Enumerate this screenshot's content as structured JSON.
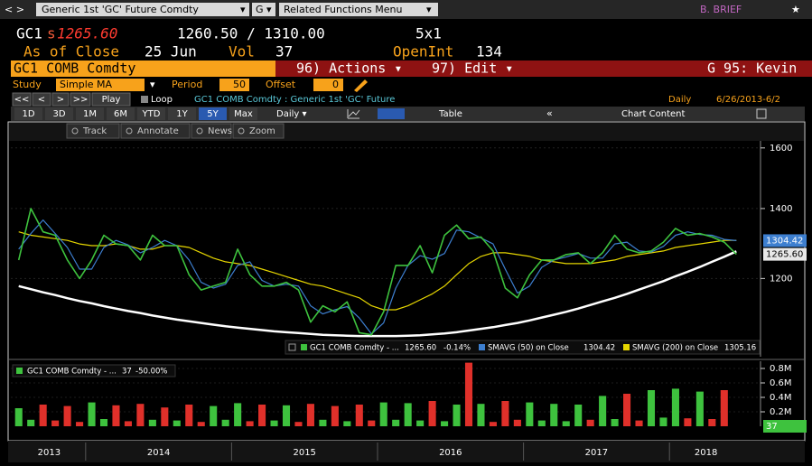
{
  "header": {
    "nav": "< >",
    "security": "Generic 1st 'GC' Future Comdty",
    "g": "G",
    "related": "Related Functions Menu",
    "arrow": "▾",
    "user": "B. BRIEF",
    "star": "★"
  },
  "quote": {
    "ticker": "GC1",
    "s": "s",
    "last": "1265.60",
    "bid_ask": "1260.50 / 1310.00",
    "size": "5x1",
    "as_of": "As of Close",
    "date": "25 Jun",
    "vol_label": "Vol",
    "vol": "37",
    "oi_label": "OpenInt",
    "oi": "134"
  },
  "command": {
    "security": "GC1 COMB Comdty",
    "actions": "96) Actions ▾",
    "edit": "97) Edit ▾",
    "launch": "G 95: Kevin"
  },
  "study": {
    "label": "Study",
    "value": "Simple MA",
    "arrow": "▾",
    "period_label": "Period",
    "period": "50",
    "offset_label": "Offset",
    "offset": "0"
  },
  "playbar": {
    "buttons": [
      "<<",
      "<",
      ">",
      ">>",
      "Play"
    ],
    "loop": "Loop",
    "description": "GC1 COMB Comdty : Generic 1st 'GC' Future",
    "frequency": "Daily",
    "range": "6/26/2013-6/2"
  },
  "rangebar": {
    "periods": [
      "1D",
      "3D",
      "1M",
      "6M",
      "YTD",
      "1Y",
      "5Y",
      "Max"
    ],
    "selected": "5Y",
    "frequency": "Daily ▾",
    "table": "Table",
    "collapse": "«",
    "content": "Chart Content"
  },
  "tools": [
    "Track",
    "Annotate",
    "News",
    "Zoom"
  ],
  "chart_data": [
    {
      "type": "line",
      "log_scale": true,
      "ylim": [
        1010,
        1625
      ],
      "yticks": [
        1200,
        1400,
        1600
      ],
      "x_labels": [
        "2013",
        "2014",
        "2015",
        "2016",
        "2017",
        "2018"
      ],
      "series": [
        {
          "name": "GC1 COMB Comdty - ...",
          "color": "#3ec23e",
          "last_label": "1265.60",
          "change": "-0.14%",
          "values": [
            1250,
            1400,
            1330,
            1320,
            1250,
            1200,
            1250,
            1320,
            1295,
            1290,
            1250,
            1320,
            1290,
            1290,
            1210,
            1170,
            1180,
            1190,
            1280,
            1210,
            1180,
            1180,
            1190,
            1170,
            1090,
            1130,
            1115,
            1140,
            1065,
            1060,
            1115,
            1235,
            1235,
            1290,
            1215,
            1320,
            1350,
            1310,
            1315,
            1275,
            1175,
            1150,
            1210,
            1250,
            1250,
            1265,
            1270,
            1240,
            1270,
            1320,
            1280,
            1270,
            1275,
            1300,
            1340,
            1320,
            1325,
            1315,
            1300,
            1265.6
          ]
        },
        {
          "name": "SMAVG (50) on Close",
          "color": "#3d7fd0",
          "values": [
            1280,
            1325,
            1365,
            1325,
            1285,
            1225,
            1225,
            1285,
            1305,
            1292,
            1270,
            1285,
            1305,
            1290,
            1250,
            1190,
            1175,
            1185,
            1235,
            1245,
            1195,
            1180,
            1185,
            1180,
            1130,
            1110,
            1120,
            1128,
            1100,
            1062,
            1088,
            1175,
            1235,
            1262,
            1252,
            1268,
            1335,
            1330,
            1312,
            1295,
            1225,
            1162,
            1180,
            1230,
            1250,
            1258,
            1268,
            1255,
            1255,
            1295,
            1300,
            1275,
            1272,
            1288,
            1320,
            1330,
            1322,
            1320,
            1308,
            1304.42
          ]
        },
        {
          "name": "SMAVG (200) on Close",
          "color": "#e6d600",
          "values": [
            1330,
            1320,
            1315,
            1310,
            1305,
            1295,
            1290,
            1290,
            1295,
            1290,
            1280,
            1280,
            1290,
            1290,
            1285,
            1270,
            1255,
            1245,
            1240,
            1235,
            1225,
            1215,
            1205,
            1195,
            1185,
            1180,
            1170,
            1160,
            1150,
            1130,
            1120,
            1120,
            1130,
            1145,
            1160,
            1180,
            1210,
            1240,
            1260,
            1270,
            1270,
            1265,
            1260,
            1250,
            1245,
            1240,
            1240,
            1240,
            1245,
            1250,
            1260,
            1265,
            1270,
            1275,
            1285,
            1290,
            1295,
            1300,
            1305,
            1305.16
          ]
        },
        {
          "color": "#ffffff",
          "values": [
            1180,
            1172,
            1164,
            1157,
            1149,
            1142,
            1136,
            1129,
            1123,
            1117,
            1112,
            1106,
            1101,
            1096,
            1092,
            1088,
            1084,
            1080,
            1077,
            1074,
            1071,
            1068,
            1066,
            1064,
            1062,
            1060,
            1059,
            1058,
            1057,
            1057,
            1057,
            1057,
            1058,
            1059,
            1061,
            1063,
            1066,
            1070,
            1074,
            1078,
            1083,
            1088,
            1094,
            1101,
            1108,
            1115,
            1123,
            1132,
            1141,
            1150,
            1160,
            1171,
            1182,
            1193,
            1206,
            1218,
            1231,
            1245,
            1259,
            1274
          ]
        }
      ]
    },
    {
      "type": "bar",
      "ylim": [
        0,
        900000
      ],
      "yticks": [
        {
          "value": 800000,
          "label": "0.8M"
        },
        {
          "value": 600000,
          "label": "0.6M"
        },
        {
          "value": 400000,
          "label": "0.4M"
        },
        {
          "value": 200000,
          "label": "0.2M"
        }
      ],
      "up_color": "#3ec23e",
      "down_color": "#e0302a",
      "series": [
        {
          "name": "GC1 COMB Comdty - ...",
          "change": "-50.00%",
          "values": [
            250000,
            90000,
            300000,
            80000,
            280000,
            60000,
            330000,
            100000,
            290000,
            70000,
            310000,
            90000,
            260000,
            80000,
            300000,
            60000,
            280000,
            90000,
            320000,
            70000,
            300000,
            80000,
            290000,
            60000,
            310000,
            90000,
            280000,
            70000,
            300000,
            80000,
            330000,
            90000,
            320000,
            80000,
            350000,
            70000,
            300000,
            880000,
            310000,
            60000,
            350000,
            90000,
            330000,
            80000,
            310000,
            70000,
            300000,
            90000,
            420000,
            100000,
            450000,
            80000,
            500000,
            120000,
            520000,
            110000,
            480000,
            100000,
            500000,
            37
          ]
        }
      ]
    }
  ]
}
